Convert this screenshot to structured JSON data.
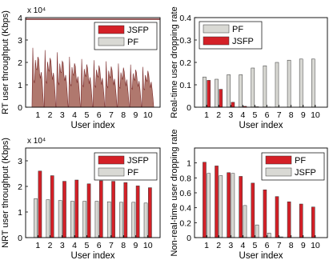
{
  "colors": {
    "jsfp": "#d42027",
    "pf": "#d9d9d4",
    "rt_fill": "#b0786e",
    "rt_edge": "#7a2a2a",
    "frame": "#000000"
  },
  "chart_data": [
    {
      "type": "area",
      "ylabel": "RT user throughput (Kbps)",
      "xlabel": "User index",
      "exponent": "x 10⁴",
      "ylim": [
        0,
        4
      ],
      "yticks": [
        "0",
        "1",
        "2",
        "3",
        "4"
      ],
      "categories": [
        "1",
        "2",
        "3",
        "4",
        "5",
        "6",
        "7",
        "8",
        "9",
        "10"
      ],
      "legend_position": "top-right",
      "legend": [
        {
          "name": "JSFP",
          "color_key": "jsfp"
        },
        {
          "name": "PF",
          "color_key": "pf"
        }
      ],
      "peaks": [
        2.65,
        2.55,
        2.45,
        2.25,
        2.15,
        2.1,
        2.05,
        1.95,
        1.9,
        1.8
      ],
      "peaks_second": [
        2.35,
        2.3,
        2.15,
        2.05,
        2.0,
        1.95,
        1.9,
        1.85,
        1.75,
        1.7
      ]
    },
    {
      "type": "bar",
      "ylabel": "Real-time user dropping rate",
      "xlabel": "User index",
      "ylim": [
        0,
        0.4
      ],
      "yticks": [
        "0",
        "0.1",
        "0.2",
        "0.3",
        "0.4"
      ],
      "categories": [
        "1",
        "2",
        "3",
        "4",
        "5",
        "6",
        "7",
        "8",
        "9",
        "10"
      ],
      "legend_position": "top-left",
      "series": [
        {
          "name": "JSFP",
          "color_key": "jsfp",
          "values": [
            0.12,
            0.08,
            0.022,
            0.004,
            0.002,
            0.001,
            0.0,
            0.0,
            0.0,
            0.0
          ]
        },
        {
          "name": "PF",
          "color_key": "pf",
          "values": [
            0.135,
            0.125,
            0.145,
            0.145,
            0.175,
            0.185,
            0.2,
            0.21,
            0.215,
            0.215
          ]
        }
      ],
      "legend": [
        {
          "name": "PF",
          "color_key": "pf"
        },
        {
          "name": "JSFP",
          "color_key": "jsfp"
        }
      ]
    },
    {
      "type": "bar",
      "ylabel": "NRT user throughput (Kbps)",
      "xlabel": "User index",
      "exponent": "x 10⁴",
      "ylim": [
        0,
        3.5
      ],
      "yticks": [
        "0",
        "1",
        "2",
        "3"
      ],
      "categories": [
        "1",
        "2",
        "3",
        "4",
        "5",
        "6",
        "7",
        "8",
        "9",
        "10"
      ],
      "legend_position": "top-right",
      "series": [
        {
          "name": "JSFP",
          "color_key": "jsfp",
          "values": [
            2.6,
            2.42,
            2.2,
            2.25,
            2.1,
            2.22,
            2.2,
            2.15,
            2.02,
            1.95
          ]
        },
        {
          "name": "PF",
          "color_key": "pf",
          "values": [
            1.52,
            1.48,
            1.45,
            1.42,
            1.42,
            1.42,
            1.4,
            1.38,
            1.38,
            1.35
          ]
        }
      ],
      "legend": [
        {
          "name": "JSFP",
          "color_key": "jsfp"
        },
        {
          "name": "PF",
          "color_key": "pf"
        }
      ]
    },
    {
      "type": "bar",
      "ylabel": "Non-real-time user dropping rate",
      "xlabel": "User index",
      "ylim": [
        0,
        1.2
      ],
      "yticks": [
        "0",
        "0.2",
        "0.4",
        "0.6",
        "0.8",
        "1"
      ],
      "categories": [
        "1",
        "2",
        "3",
        "4",
        "5",
        "6",
        "7",
        "8",
        "9",
        "10"
      ],
      "legend_position": "top-right",
      "series": [
        {
          "name": "JSFP",
          "color_key": "pf",
          "values": [
            0.86,
            0.83,
            0.86,
            0.43,
            0.17,
            0.06,
            0.01,
            0.0,
            0.0,
            0.0
          ]
        },
        {
          "name": "PF",
          "color_key": "jsfp",
          "values": [
            1.01,
            0.96,
            0.87,
            0.82,
            0.73,
            0.64,
            0.55,
            0.48,
            0.45,
            0.41
          ]
        }
      ],
      "legend": [
        {
          "name": "PF",
          "color_key": "jsfp"
        },
        {
          "name": "JSFP",
          "color_key": "pf"
        }
      ]
    }
  ]
}
